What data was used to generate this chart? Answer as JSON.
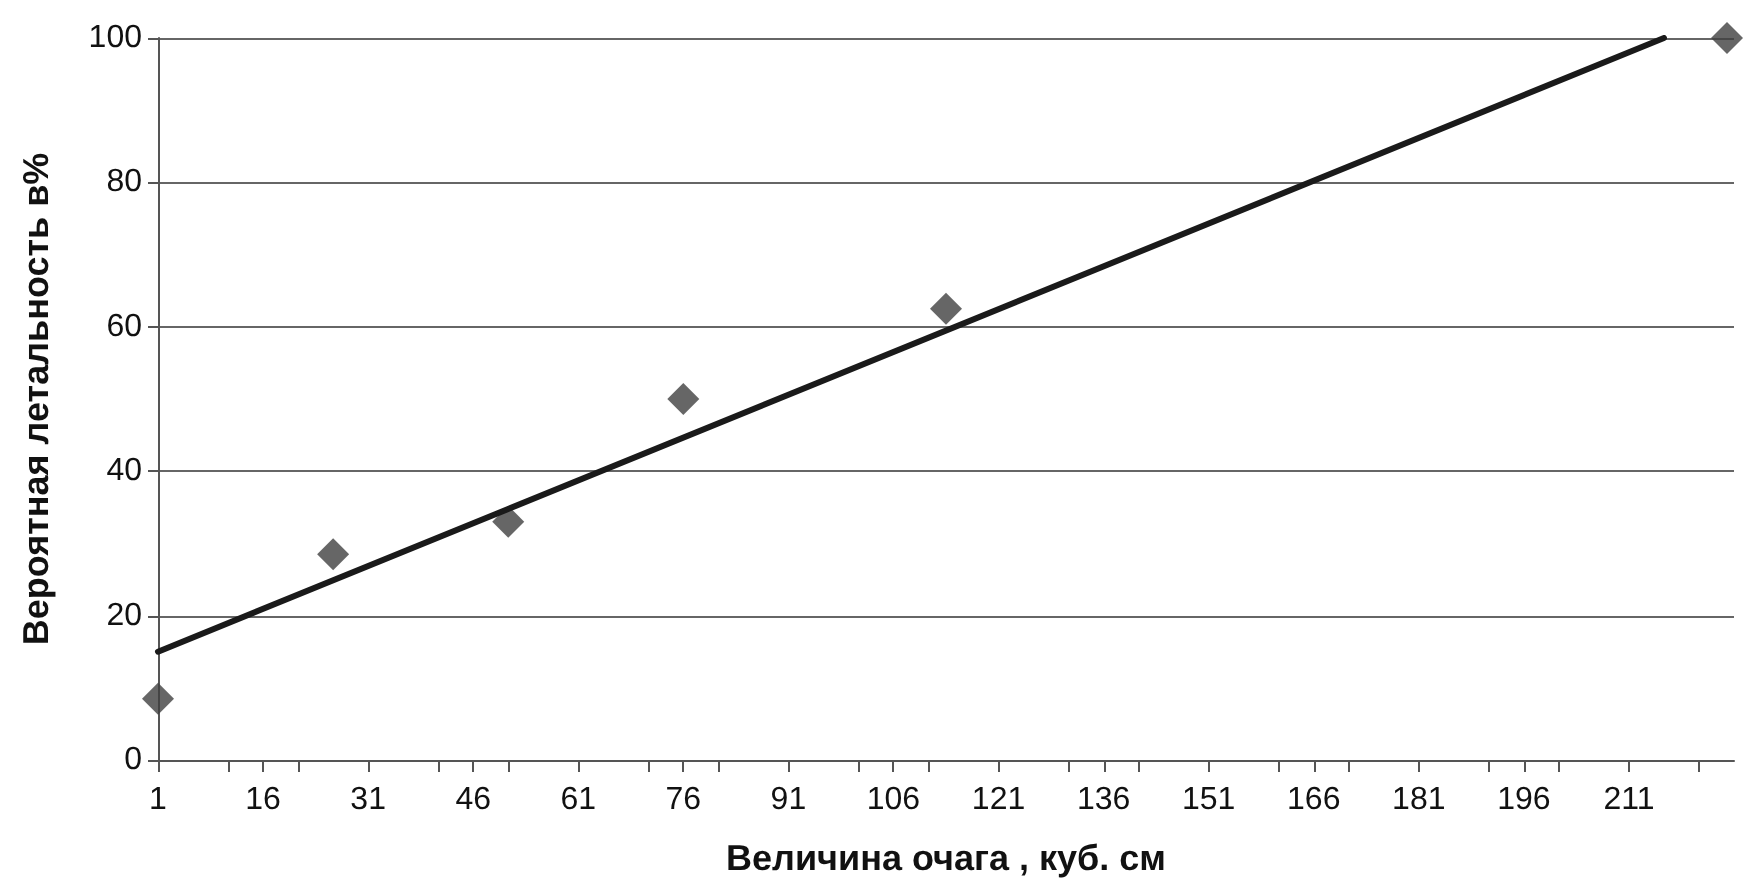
{
  "chart_data": {
    "type": "scatter",
    "xlabel": "Величина очага , куб. см",
    "ylabel": "Вероятная летальность в%",
    "xlim": [
      1,
      226
    ],
    "xticks": [
      1,
      {
        "value": 11,
        "label": null
      },
      16,
      {
        "value": 21,
        "label": null
      },
      31,
      {
        "value": 41,
        "label": null
      },
      46,
      {
        "value": 51,
        "label": null
      },
      61,
      {
        "value": 71,
        "label": null
      },
      76,
      {
        "value": 81,
        "label": null
      },
      91,
      {
        "value": 101,
        "label": null
      },
      106,
      {
        "value": 111,
        "label": null
      },
      121,
      {
        "value": 131,
        "label": null
      },
      136,
      {
        "value": 141,
        "label": null
      },
      151,
      {
        "value": 161,
        "label": null
      },
      166,
      {
        "value": 171,
        "label": null
      },
      181,
      {
        "value": 191,
        "label": null
      },
      196,
      {
        "value": 201,
        "label": null
      },
      211,
      {
        "value": 221,
        "label": null
      }
    ],
    "ylim": [
      0,
      100
    ],
    "yticks": [
      0,
      20,
      40,
      60,
      80,
      100
    ],
    "grid": "y",
    "series": [
      {
        "color": "#404040",
        "marker": "diamond",
        "x": [
          1,
          26,
          51,
          76,
          113.5,
          225
        ],
        "values": [
          8.5,
          28.5,
          33,
          50,
          62.5,
          100
        ]
      },
      {
        "type": "line",
        "color": "#1a1a1a",
        "marker": "none",
        "line_style": "solid",
        "x": [
          1,
          216
        ],
        "values": [
          15,
          100
        ]
      }
    ]
  }
}
